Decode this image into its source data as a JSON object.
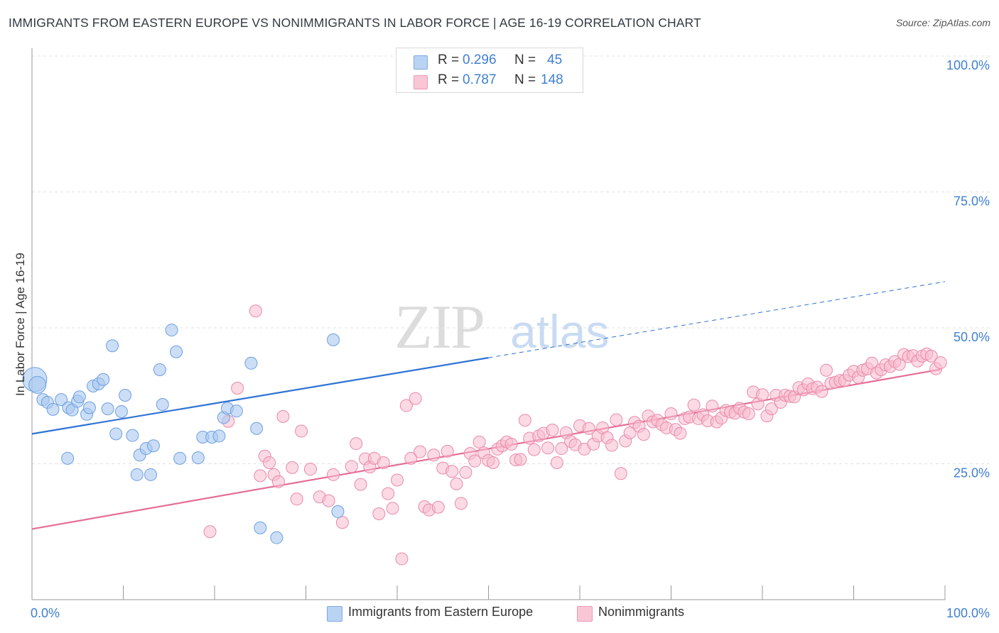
{
  "header": {
    "title": "IMMIGRANTS FROM EASTERN EUROPE VS NONIMMIGRANTS IN LABOR FORCE | AGE 16-19 CORRELATION CHART",
    "source": "Source: ZipAtlas.com"
  },
  "watermark": {
    "zip": "ZIP",
    "atlas": "atlas"
  },
  "legend": {
    "r_label": "R =",
    "n_label": "N =",
    "rows": [
      {
        "r": "0.296",
        "n": "45"
      },
      {
        "r": "0.787",
        "n": "148"
      }
    ]
  },
  "chart_data": {
    "type": "scatter",
    "title": "IMMIGRANTS FROM EASTERN EUROPE VS NONIMMIGRANTS IN LABOR FORCE | AGE 16-19 CORRELATION CHART",
    "xlabel": "",
    "ylabel": "In Labor Force | Age 16-19",
    "xlim": [
      0,
      100
    ],
    "ylim": [
      0,
      100
    ],
    "x_ticks": [
      "0.0%",
      "100.0%"
    ],
    "y_ticks": [
      "25.0%",
      "50.0%",
      "75.0%",
      "100.0%"
    ],
    "grid": true,
    "legend_position": "bottom",
    "series": [
      {
        "name": "Immigrants from Eastern Europe",
        "color": "#a9c8f0",
        "edge": "#6d9fe0",
        "trend_color": "#2f72d3",
        "trend": {
          "intercept": 30.5,
          "slope": 0.28,
          "solid_until": 50,
          "dashed_until": 100
        },
        "points": [
          [
            0.3,
            40.5
          ],
          [
            0.6,
            39.5
          ],
          [
            1.2,
            36.8
          ],
          [
            1.7,
            36.3
          ],
          [
            2.3,
            35.0
          ],
          [
            3.2,
            36.8
          ],
          [
            3.9,
            26.0
          ],
          [
            4.0,
            35.3
          ],
          [
            4.4,
            34.9
          ],
          [
            5.0,
            36.5
          ],
          [
            5.2,
            37.3
          ],
          [
            6.0,
            34.1
          ],
          [
            6.3,
            35.3
          ],
          [
            6.7,
            39.3
          ],
          [
            7.3,
            39.7
          ],
          [
            7.8,
            40.5
          ],
          [
            8.3,
            35.1
          ],
          [
            8.8,
            46.7
          ],
          [
            9.2,
            30.5
          ],
          [
            9.8,
            34.6
          ],
          [
            10.2,
            37.6
          ],
          [
            11.0,
            30.2
          ],
          [
            11.5,
            23.0
          ],
          [
            11.8,
            26.6
          ],
          [
            12.5,
            27.8
          ],
          [
            13.0,
            23.0
          ],
          [
            13.3,
            28.3
          ],
          [
            14.0,
            42.3
          ],
          [
            14.3,
            35.9
          ],
          [
            15.3,
            49.6
          ],
          [
            15.8,
            45.6
          ],
          [
            16.2,
            26.0
          ],
          [
            18.2,
            26.1
          ],
          [
            18.7,
            29.9
          ],
          [
            19.7,
            29.9
          ],
          [
            20.5,
            30.1
          ],
          [
            21.0,
            33.5
          ],
          [
            21.4,
            35.2
          ],
          [
            22.4,
            34.7
          ],
          [
            24.0,
            43.5
          ],
          [
            24.6,
            31.5
          ],
          [
            25.0,
            13.2
          ],
          [
            26.8,
            11.4
          ],
          [
            33.0,
            47.8
          ],
          [
            33.5,
            16.2
          ]
        ]
      },
      {
        "name": "Nonimmigrants",
        "color": "#f7bccd",
        "edge": "#ea8aa8",
        "trend_color": "#e56e95",
        "trend": {
          "intercept": 13.0,
          "slope": 0.295
        },
        "points": [
          [
            19.5,
            12.5
          ],
          [
            21.5,
            32.8
          ],
          [
            22.5,
            38.9
          ],
          [
            24.5,
            53.1
          ],
          [
            25.0,
            22.8
          ],
          [
            25.5,
            26.4
          ],
          [
            26.0,
            25.2
          ],
          [
            26.5,
            23.0
          ],
          [
            27.0,
            21.7
          ],
          [
            27.5,
            33.7
          ],
          [
            28.5,
            24.3
          ],
          [
            29.0,
            18.5
          ],
          [
            29.5,
            31.0
          ],
          [
            30.5,
            24.0
          ],
          [
            31.5,
            18.9
          ],
          [
            32.5,
            18.2
          ],
          [
            33.0,
            23.0
          ],
          [
            34.0,
            14.2
          ],
          [
            35.0,
            24.5
          ],
          [
            35.5,
            28.7
          ],
          [
            36.0,
            21.2
          ],
          [
            36.5,
            25.9
          ],
          [
            37.0,
            24.4
          ],
          [
            37.5,
            26.0
          ],
          [
            38.0,
            15.8
          ],
          [
            38.5,
            25.2
          ],
          [
            39.0,
            19.5
          ],
          [
            39.5,
            16.8
          ],
          [
            40.0,
            22.0
          ],
          [
            40.5,
            7.5
          ],
          [
            41.0,
            35.7
          ],
          [
            41.5,
            26.0
          ],
          [
            42.0,
            37.0
          ],
          [
            42.5,
            27.2
          ],
          [
            43.0,
            17.1
          ],
          [
            43.5,
            16.5
          ],
          [
            44.0,
            26.6
          ],
          [
            44.5,
            17.0
          ],
          [
            45.0,
            24.2
          ],
          [
            45.5,
            27.3
          ],
          [
            46.0,
            23.6
          ],
          [
            46.5,
            21.3
          ],
          [
            47.0,
            17.7
          ],
          [
            47.5,
            23.4
          ],
          [
            48.0,
            26.9
          ],
          [
            48.5,
            25.5
          ],
          [
            49.0,
            29.0
          ],
          [
            49.5,
            27.0
          ],
          [
            50.0,
            25.6
          ],
          [
            50.5,
            25.2
          ],
          [
            51.0,
            27.7
          ],
          [
            51.5,
            28.3
          ],
          [
            52.0,
            29.0
          ],
          [
            52.5,
            28.6
          ],
          [
            53.0,
            25.7
          ],
          [
            53.5,
            25.8
          ],
          [
            54.0,
            33.0
          ],
          [
            54.5,
            29.7
          ],
          [
            55.0,
            27.6
          ],
          [
            55.5,
            30.1
          ],
          [
            56.0,
            30.6
          ],
          [
            56.5,
            27.9
          ],
          [
            57.0,
            31.2
          ],
          [
            57.5,
            25.2
          ],
          [
            58.0,
            27.8
          ],
          [
            58.5,
            30.7
          ],
          [
            59.0,
            29.1
          ],
          [
            59.5,
            28.5
          ],
          [
            60.0,
            32.0
          ],
          [
            60.5,
            27.7
          ],
          [
            61.0,
            31.5
          ],
          [
            61.5,
            28.6
          ],
          [
            62.0,
            30.1
          ],
          [
            62.5,
            31.6
          ],
          [
            63.0,
            29.8
          ],
          [
            63.5,
            28.4
          ],
          [
            64.0,
            33.1
          ],
          [
            64.5,
            23.2
          ],
          [
            65.0,
            29.2
          ],
          [
            65.5,
            30.7
          ],
          [
            66.0,
            32.6
          ],
          [
            66.5,
            31.9
          ],
          [
            67.0,
            30.4
          ],
          [
            67.5,
            33.8
          ],
          [
            68.0,
            32.7
          ],
          [
            68.5,
            33.0
          ],
          [
            69.0,
            32.2
          ],
          [
            69.5,
            31.6
          ],
          [
            70.0,
            34.2
          ],
          [
            70.5,
            31.3
          ],
          [
            71.0,
            30.6
          ],
          [
            71.5,
            33.3
          ],
          [
            72.0,
            33.6
          ],
          [
            72.5,
            35.8
          ],
          [
            73.0,
            33.3
          ],
          [
            73.5,
            34.0
          ],
          [
            74.0,
            32.9
          ],
          [
            74.5,
            35.6
          ],
          [
            75.0,
            32.7
          ],
          [
            75.5,
            33.4
          ],
          [
            76.0,
            34.8
          ],
          [
            76.5,
            34.5
          ],
          [
            77.0,
            34.3
          ],
          [
            77.5,
            35.2
          ],
          [
            78.0,
            34.5
          ],
          [
            78.5,
            34.2
          ],
          [
            79.0,
            38.2
          ],
          [
            79.5,
            36.0
          ],
          [
            80.0,
            37.7
          ],
          [
            80.5,
            33.8
          ],
          [
            81.0,
            35.1
          ],
          [
            81.5,
            37.6
          ],
          [
            82.0,
            36.3
          ],
          [
            82.5,
            37.6
          ],
          [
            83.0,
            37.4
          ],
          [
            83.5,
            37.3
          ],
          [
            84.0,
            39.0
          ],
          [
            84.5,
            38.6
          ],
          [
            85.0,
            39.7
          ],
          [
            85.5,
            38.8
          ],
          [
            86.0,
            39.1
          ],
          [
            86.5,
            38.3
          ],
          [
            87.0,
            42.2
          ],
          [
            87.5,
            39.8
          ],
          [
            88.0,
            40.0
          ],
          [
            88.5,
            40.3
          ],
          [
            89.0,
            40.3
          ],
          [
            89.5,
            41.3
          ],
          [
            90.0,
            42.0
          ],
          [
            90.5,
            40.9
          ],
          [
            91.0,
            42.2
          ],
          [
            91.5,
            42.5
          ],
          [
            92.0,
            43.5
          ],
          [
            92.5,
            41.7
          ],
          [
            93.0,
            42.3
          ],
          [
            93.5,
            43.2
          ],
          [
            94.0,
            42.9
          ],
          [
            94.5,
            43.8
          ],
          [
            95.0,
            43.3
          ],
          [
            95.5,
            45.1
          ],
          [
            96.0,
            44.7
          ],
          [
            96.5,
            44.9
          ],
          [
            97.0,
            43.9
          ],
          [
            97.5,
            44.8
          ],
          [
            98.0,
            45.2
          ],
          [
            98.5,
            44.8
          ],
          [
            99.0,
            42.5
          ],
          [
            99.5,
            43.6
          ]
        ]
      }
    ]
  }
}
